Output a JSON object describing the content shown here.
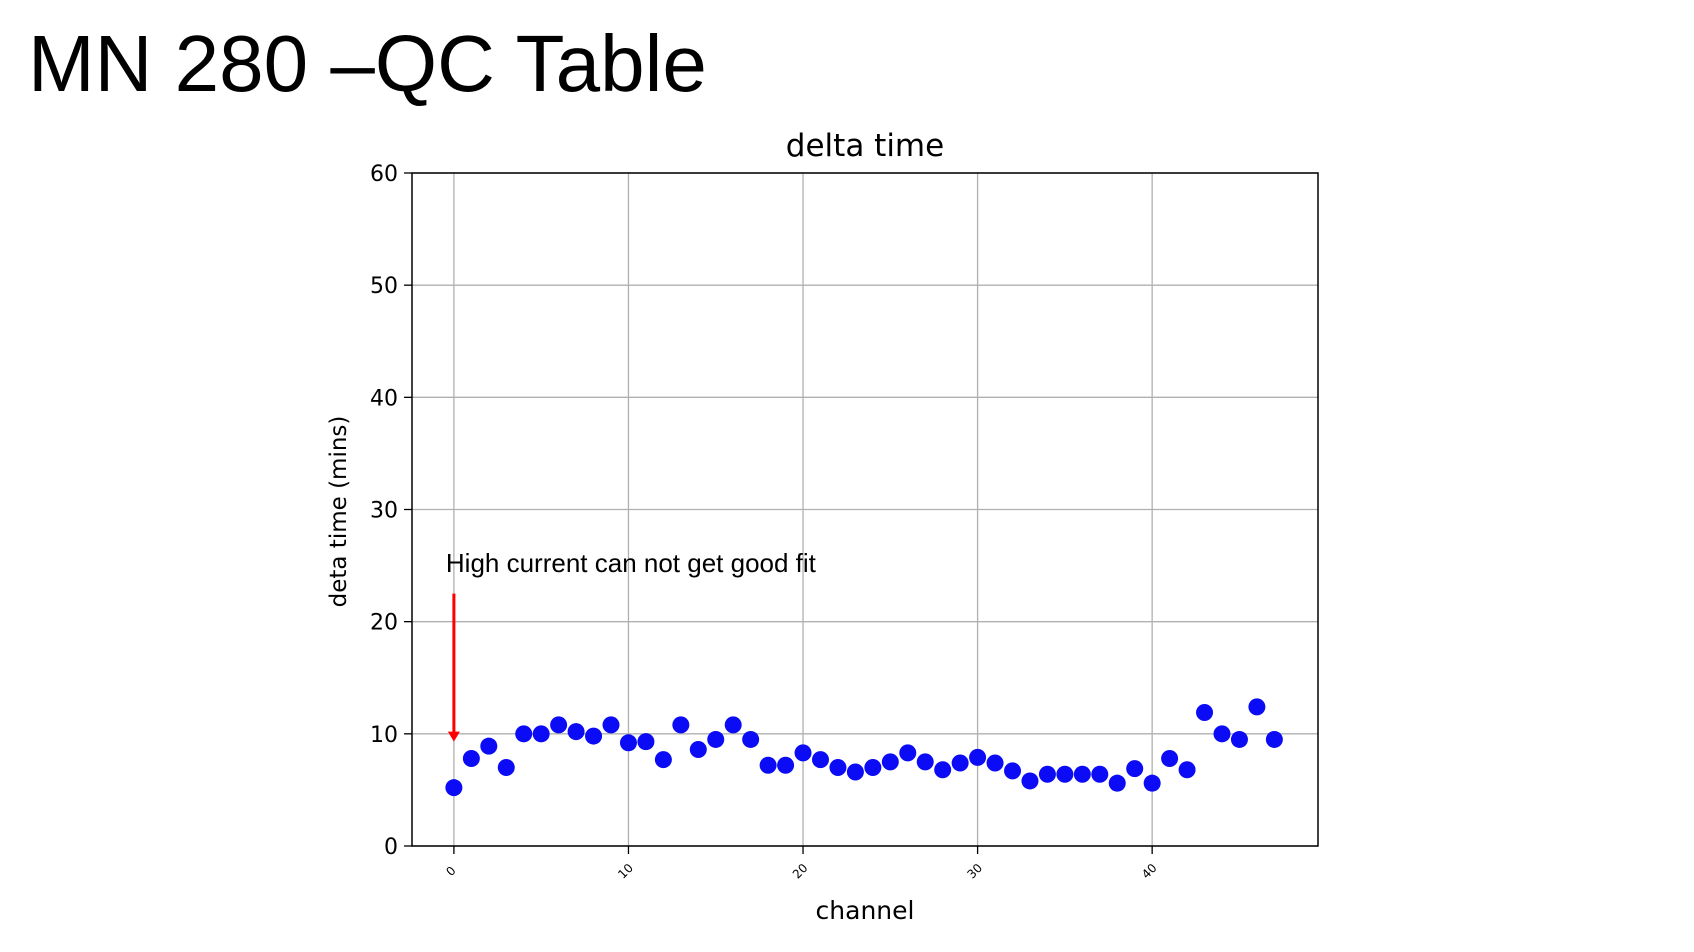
{
  "slide": {
    "title": "MN 280 –QC Table"
  },
  "chart_data": {
    "type": "scatter",
    "title": "delta time",
    "xlabel": "channel",
    "ylabel": "deta time (mins)",
    "xlim": [
      -2.4,
      49.5
    ],
    "ylim": [
      0,
      60
    ],
    "xticks": [
      0,
      10,
      20,
      30,
      40
    ],
    "yticks": [
      0,
      10,
      20,
      30,
      40,
      50,
      60
    ],
    "grid": true,
    "marker_color": "#0b0bf5",
    "series": [
      {
        "x": [
          0,
          1,
          2,
          3,
          4,
          5,
          6,
          7,
          8,
          9,
          10,
          11,
          12,
          13,
          14,
          15,
          16,
          17,
          18,
          19,
          20,
          21,
          22,
          23,
          24,
          25,
          26,
          27,
          28,
          29,
          30,
          31,
          32,
          33,
          34,
          35,
          36,
          37,
          38,
          39,
          40,
          41,
          42,
          43,
          44,
          45,
          46,
          47
        ],
        "y": [
          5.2,
          7.8,
          8.9,
          7.0,
          10.0,
          10.0,
          10.8,
          10.2,
          9.8,
          10.8,
          9.2,
          9.3,
          7.7,
          10.8,
          8.6,
          9.5,
          10.8,
          9.5,
          7.2,
          7.2,
          8.3,
          7.7,
          7.0,
          6.6,
          7.0,
          7.5,
          8.3,
          7.5,
          6.8,
          7.4,
          7.9,
          7.4,
          6.7,
          5.8,
          6.4,
          6.4,
          6.4,
          6.4,
          5.6,
          6.9,
          5.6,
          7.8,
          6.8,
          11.9,
          10.0,
          9.5,
          12.4,
          9.5
        ]
      }
    ],
    "annotations": [
      {
        "text": "High current can not get good fit",
        "arrow_color": "#ff0000",
        "arrow_x": 0,
        "arrow_from_y": 22.5,
        "arrow_to_y": 9.3
      }
    ]
  }
}
